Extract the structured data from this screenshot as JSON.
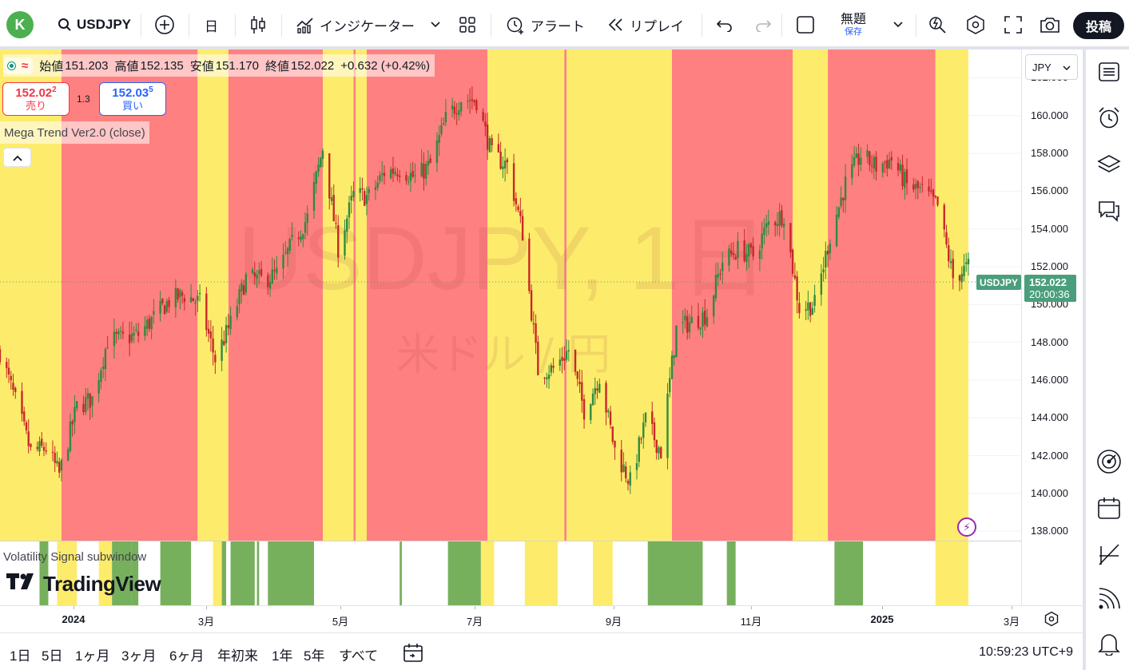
{
  "toolbar": {
    "avatar_letter": "K",
    "symbol": "USDJPY",
    "interval": "日",
    "indicators_label": "インジケーター",
    "alert_label": "アラート",
    "replay_label": "リプレイ",
    "layout_name": "無題",
    "save_label": "保存",
    "post_label": "投稿"
  },
  "legend": {
    "open_label": "始値",
    "open": "151.203",
    "high_label": "高値",
    "high": "152.135",
    "low_label": "安値",
    "low": "151.170",
    "close_label": "終値",
    "close": "152.022",
    "change": "+0.632 (+0.42%)"
  },
  "trade": {
    "sell_price": "152.02",
    "sell_sup": "2",
    "sell_label": "売り",
    "spread": "1.3",
    "buy_price": "152.03",
    "buy_sup": "5",
    "buy_label": "買い"
  },
  "indicator_name": "Mega Trend Ver2.0 (close)",
  "subwindow_label": "Volatility Signal subwindow",
  "logo_text": "TradingView",
  "watermark": {
    "symbol": "USDJPY, 1日",
    "description": "米ドル / 円"
  },
  "price_axis": {
    "currency": "JPY",
    "ticks": [
      "162.000",
      "160.000",
      "158.000",
      "156.000",
      "154.000",
      "152.000",
      "150.000",
      "148.000",
      "146.000",
      "144.000",
      "142.000",
      "140.000",
      "138.000"
    ]
  },
  "price_tag": {
    "symbol": "USDJPY",
    "price": "152.022",
    "countdown": "20:00:36"
  },
  "time_axis": {
    "ticks": [
      {
        "label": "2024",
        "bold": true
      },
      {
        "label": "3月",
        "bold": false
      },
      {
        "label": "5月",
        "bold": false
      },
      {
        "label": "7月",
        "bold": false
      },
      {
        "label": "9月",
        "bold": false
      },
      {
        "label": "11月",
        "bold": false
      },
      {
        "label": "2025",
        "bold": true
      },
      {
        "label": "3月",
        "bold": false
      }
    ]
  },
  "bottom": {
    "ranges": [
      "1日",
      "5日",
      "1ヶ月",
      "3ヶ月",
      "6ヶ月",
      "年初来",
      "1年",
      "5年",
      "すべて"
    ],
    "clock": "10:59:23 UTC+9"
  },
  "colors": {
    "trend_up": "#fdec6b",
    "trend_down": "#ff8080",
    "candle_up": "#2d8a3e",
    "candle_down": "#c62828",
    "vol_green": "#77b05c",
    "vol_yellow": "#fdec6b",
    "price_tag": "#4a9e7c"
  },
  "chart_data": {
    "type": "candlestick",
    "symbol": "USDJPY",
    "interval": "1D",
    "x_start": "2023-12-01",
    "x_end": "2025-02-14",
    "ylim": [
      137.5,
      163.5
    ],
    "close_path": [
      {
        "date": "2023-12-01",
        "close": 147.5
      },
      {
        "date": "2023-12-08",
        "close": 144.9
      },
      {
        "date": "2023-12-15",
        "close": 142.2
      },
      {
        "date": "2023-12-22",
        "close": 142.4
      },
      {
        "date": "2023-12-28",
        "close": 141.0
      },
      {
        "date": "2024-01-05",
        "close": 144.6
      },
      {
        "date": "2024-01-12",
        "close": 145.0
      },
      {
        "date": "2024-01-19",
        "close": 148.1
      },
      {
        "date": "2024-01-26",
        "close": 148.2
      },
      {
        "date": "2024-02-02",
        "close": 148.4
      },
      {
        "date": "2024-02-09",
        "close": 149.3
      },
      {
        "date": "2024-02-16",
        "close": 150.2
      },
      {
        "date": "2024-02-23",
        "close": 150.5
      },
      {
        "date": "2024-03-01",
        "close": 150.1
      },
      {
        "date": "2024-03-08",
        "close": 147.1
      },
      {
        "date": "2024-03-15",
        "close": 149.0
      },
      {
        "date": "2024-03-22",
        "close": 151.4
      },
      {
        "date": "2024-03-29",
        "close": 151.3
      },
      {
        "date": "2024-04-05",
        "close": 151.6
      },
      {
        "date": "2024-04-12",
        "close": 153.2
      },
      {
        "date": "2024-04-19",
        "close": 154.6
      },
      {
        "date": "2024-04-26",
        "close": 158.3
      },
      {
        "date": "2024-05-03",
        "close": 153.0
      },
      {
        "date": "2024-05-10",
        "close": 155.8
      },
      {
        "date": "2024-05-17",
        "close": 155.7
      },
      {
        "date": "2024-05-24",
        "close": 157.0
      },
      {
        "date": "2024-05-31",
        "close": 157.2
      },
      {
        "date": "2024-06-07",
        "close": 156.7
      },
      {
        "date": "2024-06-14",
        "close": 157.4
      },
      {
        "date": "2024-06-21",
        "close": 159.8
      },
      {
        "date": "2024-06-28",
        "close": 160.9
      },
      {
        "date": "2024-07-05",
        "close": 160.8
      },
      {
        "date": "2024-07-12",
        "close": 157.9
      },
      {
        "date": "2024-07-19",
        "close": 157.4
      },
      {
        "date": "2024-07-26",
        "close": 153.8
      },
      {
        "date": "2024-08-02",
        "close": 146.5
      },
      {
        "date": "2024-08-09",
        "close": 146.6
      },
      {
        "date": "2024-08-16",
        "close": 147.6
      },
      {
        "date": "2024-08-23",
        "close": 144.4
      },
      {
        "date": "2024-08-30",
        "close": 146.2
      },
      {
        "date": "2024-09-06",
        "close": 142.3
      },
      {
        "date": "2024-09-13",
        "close": 140.6
      },
      {
        "date": "2024-09-20",
        "close": 143.9
      },
      {
        "date": "2024-09-27",
        "close": 142.2
      },
      {
        "date": "2024-10-04",
        "close": 148.7
      },
      {
        "date": "2024-10-11",
        "close": 149.1
      },
      {
        "date": "2024-10-18",
        "close": 149.5
      },
      {
        "date": "2024-10-25",
        "close": 152.3
      },
      {
        "date": "2024-11-01",
        "close": 152.9
      },
      {
        "date": "2024-11-08",
        "close": 152.6
      },
      {
        "date": "2024-11-15",
        "close": 154.3
      },
      {
        "date": "2024-11-22",
        "close": 154.8
      },
      {
        "date": "2024-11-29",
        "close": 149.8
      },
      {
        "date": "2024-12-06",
        "close": 150.0
      },
      {
        "date": "2024-12-13",
        "close": 153.6
      },
      {
        "date": "2024-12-20",
        "close": 156.4
      },
      {
        "date": "2024-12-27",
        "close": 157.9
      },
      {
        "date": "2025-01-03",
        "close": 157.3
      },
      {
        "date": "2025-01-10",
        "close": 157.7
      },
      {
        "date": "2025-01-17",
        "close": 156.3
      },
      {
        "date": "2025-01-24",
        "close": 156.0
      },
      {
        "date": "2025-01-31",
        "close": 155.2
      },
      {
        "date": "2025-02-07",
        "close": 151.4
      },
      {
        "date": "2025-02-14",
        "close": 152.0
      }
    ],
    "trend_bands": [
      {
        "from": "2023-12-01",
        "to": "2023-12-29",
        "color": "yellow"
      },
      {
        "from": "2023-12-29",
        "to": "2024-02-29",
        "color": "red"
      },
      {
        "from": "2024-02-29",
        "to": "2024-03-14",
        "color": "yellow"
      },
      {
        "from": "2024-03-14",
        "to": "2024-04-26",
        "color": "red"
      },
      {
        "from": "2024-04-26",
        "to": "2024-05-10",
        "color": "yellow"
      },
      {
        "from": "2024-05-10",
        "to": "2024-05-11",
        "color": "red"
      },
      {
        "from": "2024-05-11",
        "to": "2024-05-16",
        "color": "yellow"
      },
      {
        "from": "2024-05-16",
        "to": "2024-07-10",
        "color": "red"
      },
      {
        "from": "2024-07-10",
        "to": "2024-08-14",
        "color": "yellow"
      },
      {
        "from": "2024-08-14",
        "to": "2024-08-15",
        "color": "red"
      },
      {
        "from": "2024-08-15",
        "to": "2024-10-02",
        "color": "yellow"
      },
      {
        "from": "2024-10-02",
        "to": "2024-11-26",
        "color": "red"
      },
      {
        "from": "2024-11-26",
        "to": "2024-12-12",
        "color": "yellow"
      },
      {
        "from": "2024-12-12",
        "to": "2025-01-30",
        "color": "red"
      },
      {
        "from": "2025-01-30",
        "to": "2025-02-14",
        "color": "yellow"
      }
    ],
    "volatility_bands": [
      {
        "from": "2023-12-19",
        "to": "2023-12-23",
        "color": "green"
      },
      {
        "from": "2023-12-27",
        "to": "2024-01-05",
        "color": "yellow"
      },
      {
        "from": "2024-01-15",
        "to": "2024-01-21",
        "color": "yellow"
      },
      {
        "from": "2024-01-21",
        "to": "2024-01-30",
        "color": "green"
      },
      {
        "from": "2024-01-30",
        "to": "2024-02-02",
        "color": "green"
      },
      {
        "from": "2024-02-12",
        "to": "2024-02-26",
        "color": "green"
      },
      {
        "from": "2024-03-07",
        "to": "2024-03-11",
        "color": "yellow"
      },
      {
        "from": "2024-03-11",
        "to": "2024-03-13",
        "color": "green"
      },
      {
        "from": "2024-03-15",
        "to": "2024-03-26",
        "color": "green"
      },
      {
        "from": "2024-03-27",
        "to": "2024-03-28",
        "color": "green"
      },
      {
        "from": "2024-04-01",
        "to": "2024-04-22",
        "color": "green"
      },
      {
        "from": "2024-05-31",
        "to": "2024-06-01",
        "color": "green"
      },
      {
        "from": "2024-06-22",
        "to": "2024-07-07",
        "color": "green"
      },
      {
        "from": "2024-07-07",
        "to": "2024-07-13",
        "color": "yellow"
      },
      {
        "from": "2024-07-27",
        "to": "2024-08-11",
        "color": "yellow"
      },
      {
        "from": "2024-08-27",
        "to": "2024-09-05",
        "color": "yellow"
      },
      {
        "from": "2024-09-21",
        "to": "2024-10-16",
        "color": "green"
      },
      {
        "from": "2024-10-27",
        "to": "2024-10-31",
        "color": "green"
      },
      {
        "from": "2024-12-15",
        "to": "2024-12-28",
        "color": "green"
      },
      {
        "from": "2025-01-30",
        "to": "2025-02-14",
        "color": "yellow"
      }
    ]
  }
}
